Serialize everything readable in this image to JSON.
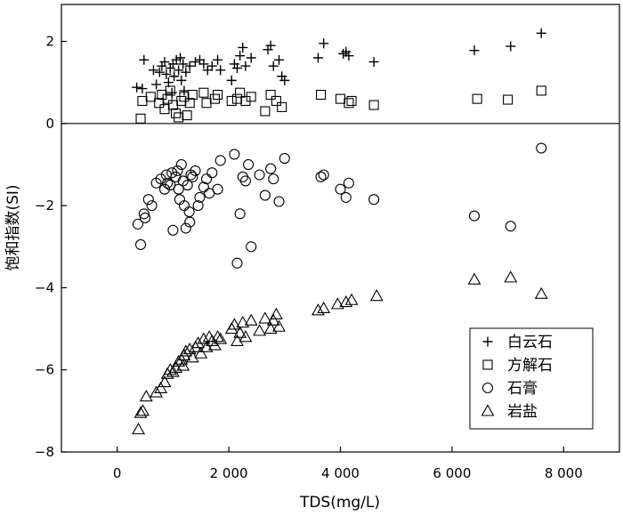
{
  "chart_data": {
    "type": "scatter",
    "xlabel": "TDS(mg/L)",
    "ylabel": "饱和指数(SI)",
    "xlim": [
      -1000,
      9000
    ],
    "ylim": [
      -8,
      2.9
    ],
    "x_ticks": [
      0,
      2000,
      4000,
      6000,
      8000
    ],
    "x_tick_labels": [
      "0",
      "2 000",
      "4 000",
      "6 000",
      "8 000"
    ],
    "y_ticks": [
      -8,
      -6,
      -4,
      -2,
      0,
      2
    ],
    "y_tick_labels": [
      "−8",
      "−6",
      "−4",
      "−2",
      "0",
      "2"
    ],
    "reference_line_y": 0,
    "legend_position": "bottom-right",
    "series": [
      {
        "name": "白云石",
        "marker": "plus",
        "points": [
          [
            350,
            0.88
          ],
          [
            480,
            1.55
          ],
          [
            450,
            0.85
          ],
          [
            650,
            1.3
          ],
          [
            700,
            0.95
          ],
          [
            760,
            1.25
          ],
          [
            800,
            1.4
          ],
          [
            850,
            1.5
          ],
          [
            880,
            1.2
          ],
          [
            920,
            1.0
          ],
          [
            950,
            1.35
          ],
          [
            980,
            0.75
          ],
          [
            1000,
            1.45
          ],
          [
            1020,
            1.15
          ],
          [
            1060,
            1.55
          ],
          [
            1100,
            1.3
          ],
          [
            1130,
            1.6
          ],
          [
            1150,
            1.05
          ],
          [
            1180,
            1.45
          ],
          [
            1200,
            0.8
          ],
          [
            1230,
            1.25
          ],
          [
            1300,
            1.4
          ],
          [
            1400,
            1.5
          ],
          [
            1480,
            1.55
          ],
          [
            1550,
            1.45
          ],
          [
            1620,
            1.3
          ],
          [
            1700,
            1.4
          ],
          [
            1800,
            1.55
          ],
          [
            1850,
            1.3
          ],
          [
            2050,
            1.05
          ],
          [
            2100,
            1.45
          ],
          [
            2150,
            1.35
          ],
          [
            2200,
            1.65
          ],
          [
            2250,
            1.85
          ],
          [
            2300,
            1.4
          ],
          [
            2400,
            1.6
          ],
          [
            2700,
            1.8
          ],
          [
            2750,
            1.9
          ],
          [
            2800,
            1.4
          ],
          [
            2900,
            1.55
          ],
          [
            2950,
            1.15
          ],
          [
            3000,
            1.05
          ],
          [
            3600,
            1.6
          ],
          [
            3700,
            1.95
          ],
          [
            4050,
            1.7
          ],
          [
            4100,
            1.75
          ],
          [
            4150,
            1.65
          ],
          [
            4600,
            1.5
          ],
          [
            6400,
            1.78
          ],
          [
            7050,
            1.88
          ],
          [
            7600,
            2.2
          ]
        ]
      },
      {
        "name": "方解石",
        "marker": "square",
        "points": [
          [
            420,
            0.12
          ],
          [
            450,
            0.55
          ],
          [
            600,
            0.65
          ],
          [
            750,
            0.5
          ],
          [
            800,
            0.7
          ],
          [
            850,
            0.35
          ],
          [
            900,
            0.6
          ],
          [
            950,
            0.8
          ],
          [
            1000,
            0.45
          ],
          [
            1050,
            0.25
          ],
          [
            1100,
            0.15
          ],
          [
            1150,
            0.55
          ],
          [
            1200,
            0.65
          ],
          [
            1250,
            0.2
          ],
          [
            1300,
            0.5
          ],
          [
            1350,
            0.7
          ],
          [
            1550,
            0.75
          ],
          [
            1600,
            0.5
          ],
          [
            1750,
            0.6
          ],
          [
            1800,
            0.7
          ],
          [
            2050,
            0.55
          ],
          [
            2150,
            0.6
          ],
          [
            2200,
            0.75
          ],
          [
            2300,
            0.55
          ],
          [
            2400,
            0.65
          ],
          [
            2650,
            0.3
          ],
          [
            2750,
            0.7
          ],
          [
            2850,
            0.55
          ],
          [
            2950,
            0.4
          ],
          [
            3650,
            0.7
          ],
          [
            4000,
            0.6
          ],
          [
            4150,
            0.5
          ],
          [
            4200,
            0.55
          ],
          [
            4600,
            0.45
          ],
          [
            6450,
            0.6
          ],
          [
            7000,
            0.58
          ],
          [
            7600,
            0.8
          ]
        ]
      },
      {
        "name": "石膏",
        "marker": "circle",
        "points": [
          [
            370,
            -2.45
          ],
          [
            420,
            -2.95
          ],
          [
            480,
            -2.2
          ],
          [
            500,
            -2.3
          ],
          [
            560,
            -1.85
          ],
          [
            620,
            -2.0
          ],
          [
            700,
            -1.45
          ],
          [
            780,
            -1.35
          ],
          [
            850,
            -1.6
          ],
          [
            880,
            -1.25
          ],
          [
            900,
            -1.45
          ],
          [
            950,
            -1.5
          ],
          [
            980,
            -1.2
          ],
          [
            1000,
            -2.6
          ],
          [
            1050,
            -1.3
          ],
          [
            1080,
            -1.15
          ],
          [
            1100,
            -1.6
          ],
          [
            1120,
            -1.85
          ],
          [
            1150,
            -1.0
          ],
          [
            1180,
            -1.4
          ],
          [
            1200,
            -2.0
          ],
          [
            1230,
            -2.55
          ],
          [
            1260,
            -1.5
          ],
          [
            1290,
            -2.15
          ],
          [
            1300,
            -2.4
          ],
          [
            1320,
            -1.25
          ],
          [
            1350,
            -1.3
          ],
          [
            1400,
            -1.15
          ],
          [
            1450,
            -2.0
          ],
          [
            1480,
            -1.8
          ],
          [
            1550,
            -1.55
          ],
          [
            1600,
            -1.35
          ],
          [
            1650,
            -1.7
          ],
          [
            1700,
            -1.2
          ],
          [
            1800,
            -1.6
          ],
          [
            1850,
            -0.9
          ],
          [
            2100,
            -0.75
          ],
          [
            2150,
            -3.4
          ],
          [
            2200,
            -2.2
          ],
          [
            2250,
            -1.3
          ],
          [
            2300,
            -1.4
          ],
          [
            2350,
            -1.0
          ],
          [
            2400,
            -3.0
          ],
          [
            2550,
            -1.25
          ],
          [
            2650,
            -1.75
          ],
          [
            2750,
            -1.1
          ],
          [
            2800,
            -1.35
          ],
          [
            2900,
            -1.9
          ],
          [
            3000,
            -0.85
          ],
          [
            3650,
            -1.3
          ],
          [
            3700,
            -1.25
          ],
          [
            4000,
            -1.6
          ],
          [
            4100,
            -1.8
          ],
          [
            4150,
            -1.45
          ],
          [
            4600,
            -1.85
          ],
          [
            6400,
            -2.25
          ],
          [
            7050,
            -2.5
          ],
          [
            7600,
            -0.6
          ]
        ]
      },
      {
        "name": "岩盐",
        "marker": "triangle",
        "points": [
          [
            380,
            -7.45
          ],
          [
            420,
            -7.05
          ],
          [
            460,
            -7.0
          ],
          [
            520,
            -6.65
          ],
          [
            700,
            -6.55
          ],
          [
            780,
            -6.45
          ],
          [
            850,
            -6.3
          ],
          [
            900,
            -6.1
          ],
          [
            950,
            -6.0
          ],
          [
            1000,
            -6.05
          ],
          [
            1050,
            -5.95
          ],
          [
            1100,
            -5.8
          ],
          [
            1150,
            -5.75
          ],
          [
            1180,
            -5.9
          ],
          [
            1200,
            -5.65
          ],
          [
            1230,
            -5.55
          ],
          [
            1300,
            -5.5
          ],
          [
            1350,
            -5.7
          ],
          [
            1400,
            -5.45
          ],
          [
            1450,
            -5.35
          ],
          [
            1500,
            -5.6
          ],
          [
            1550,
            -5.25
          ],
          [
            1600,
            -5.45
          ],
          [
            1650,
            -5.2
          ],
          [
            1700,
            -5.3
          ],
          [
            1750,
            -5.4
          ],
          [
            1800,
            -5.2
          ],
          [
            1850,
            -5.25
          ],
          [
            2050,
            -5.0
          ],
          [
            2100,
            -4.9
          ],
          [
            2150,
            -5.3
          ],
          [
            2200,
            -5.1
          ],
          [
            2250,
            -4.85
          ],
          [
            2300,
            -5.2
          ],
          [
            2400,
            -4.8
          ],
          [
            2550,
            -5.05
          ],
          [
            2650,
            -4.75
          ],
          [
            2750,
            -5.0
          ],
          [
            2800,
            -4.8
          ],
          [
            2850,
            -4.65
          ],
          [
            2900,
            -4.95
          ],
          [
            3600,
            -4.55
          ],
          [
            3700,
            -4.5
          ],
          [
            3950,
            -4.4
          ],
          [
            4100,
            -4.35
          ],
          [
            4200,
            -4.3
          ],
          [
            4650,
            -4.2
          ],
          [
            6400,
            -3.8
          ],
          [
            7050,
            -3.75
          ],
          [
            7600,
            -4.15
          ]
        ]
      }
    ]
  }
}
